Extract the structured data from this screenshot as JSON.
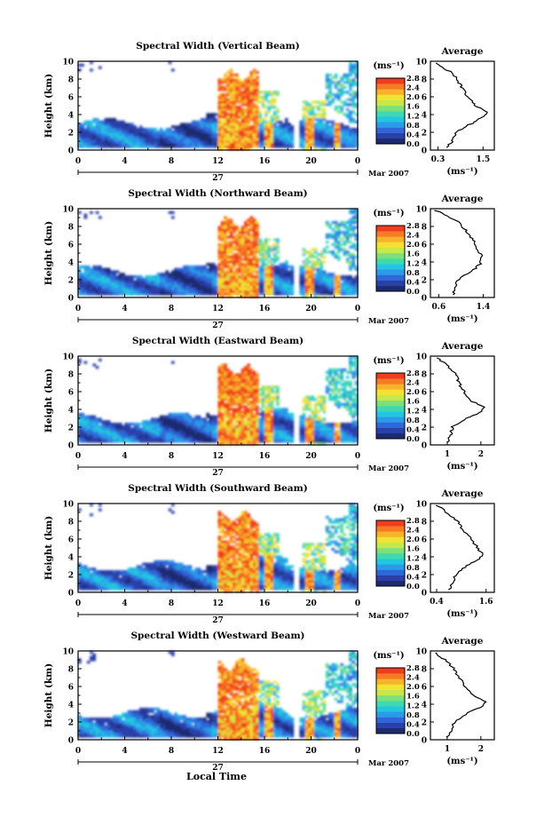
{
  "figure": {
    "xlabel": "Local Time",
    "date_label": "Mar 2007",
    "day_label": "27"
  },
  "colorbar": {
    "unit": "(ms⁻¹)",
    "ticks": [
      "2.8",
      "2.4",
      "2.0",
      "1.6",
      "1.2",
      "0.8",
      "0.4",
      "0.0"
    ],
    "vmin": 0.0,
    "vmax": 2.8,
    "colors": [
      "#1c2a6e",
      "#2a3fa8",
      "#2f67d8",
      "#2b9ae8",
      "#22c6e0",
      "#3fd9b0",
      "#7fe07a",
      "#c6e84a",
      "#f2e233",
      "#f9b32a",
      "#f67b25",
      "#f03d1f"
    ]
  },
  "chart_data": [
    {
      "type": "heatmap",
      "title": "Spectral Width (Vertical Beam)",
      "ylabel": "Height (km)",
      "xticks": [
        "0",
        "4",
        "8",
        "12",
        "16",
        "20",
        "0"
      ],
      "yticks": [
        "0",
        "2",
        "4",
        "6",
        "8",
        "10"
      ],
      "xlim": [
        0,
        24
      ],
      "ylim": [
        0,
        10
      ],
      "gaps": [
        [
          18.5,
          19.0
        ]
      ],
      "profile": {
        "title": "Average",
        "xlabel": "(ms⁻¹)",
        "xticks": [
          "0.3",
          "1.5"
        ],
        "xtick_values": [
          0.3,
          1.5
        ],
        "xlim": [
          0.1,
          1.8
        ],
        "yticks": [
          "0",
          "2",
          "4",
          "6",
          "8",
          "10"
        ],
        "heights": [
          0.3,
          1.0,
          2.0,
          3.0,
          3.8,
          4.3,
          5.0,
          6.0,
          7.0,
          8.0,
          8.8,
          9.4,
          9.8
        ],
        "values": [
          0.5,
          0.7,
          0.75,
          1.2,
          1.5,
          1.6,
          1.3,
          1.1,
          0.95,
          0.8,
          0.65,
          0.35,
          0.25
        ]
      }
    },
    {
      "type": "heatmap",
      "title": "Spectral Width (Northward Beam)",
      "ylabel": "Height (km)",
      "xticks": [
        "0",
        "4",
        "8",
        "12",
        "16",
        "20",
        "0"
      ],
      "yticks": [
        "0",
        "2",
        "4",
        "6",
        "8",
        "10"
      ],
      "xlim": [
        0,
        24
      ],
      "ylim": [
        0,
        10
      ],
      "gaps": [
        [
          18.5,
          19.0
        ]
      ],
      "profile": {
        "title": "Average",
        "xlabel": "(ms⁻¹)",
        "xticks": [
          "0.6",
          "1.4"
        ],
        "xtick_values": [
          0.6,
          1.4
        ],
        "xlim": [
          0.45,
          1.6
        ],
        "yticks": [
          "0",
          "2",
          "4",
          "6",
          "8",
          "10"
        ],
        "heights": [
          0.3,
          1.0,
          2.0,
          3.0,
          3.8,
          4.5,
          5.5,
          6.5,
          7.5,
          8.5,
          9.3,
          9.8
        ],
        "values": [
          0.85,
          0.9,
          0.95,
          1.2,
          1.35,
          1.38,
          1.3,
          1.22,
          1.1,
          0.95,
          0.7,
          0.55
        ]
      }
    },
    {
      "type": "heatmap",
      "title": "Spectral Width (Eastward Beam)",
      "ylabel": "Height (km)",
      "xticks": [
        "0",
        "4",
        "8",
        "12",
        "16",
        "20",
        "0"
      ],
      "yticks": [
        "0",
        "2",
        "4",
        "6",
        "8",
        "10"
      ],
      "xlim": [
        0,
        24
      ],
      "ylim": [
        0,
        10
      ],
      "gaps": [
        [
          18.5,
          19.0
        ]
      ],
      "profile": {
        "title": "Average",
        "xlabel": "(ms⁻¹)",
        "xticks": [
          "1",
          "2"
        ],
        "xtick_values": [
          1,
          2
        ],
        "xlim": [
          0.5,
          2.4
        ],
        "yticks": [
          "0",
          "2",
          "4",
          "6",
          "8",
          "10"
        ],
        "heights": [
          0.3,
          1.0,
          2.0,
          3.0,
          3.8,
          4.2,
          5.0,
          6.0,
          7.0,
          8.0,
          8.8,
          9.5,
          9.8
        ],
        "values": [
          1.0,
          1.1,
          1.15,
          1.6,
          2.05,
          2.1,
          1.7,
          1.5,
          1.35,
          1.25,
          1.05,
          0.8,
          0.7
        ]
      }
    },
    {
      "type": "heatmap",
      "title": "Spectral Width (Southward Beam)",
      "ylabel": "Height (km)",
      "xticks": [
        "0",
        "4",
        "8",
        "12",
        "16",
        "20",
        "0"
      ],
      "yticks": [
        "0",
        "2",
        "4",
        "6",
        "8",
        "10"
      ],
      "xlim": [
        0,
        24
      ],
      "ylim": [
        0,
        10
      ],
      "gaps": [
        [
          18.5,
          19.0
        ]
      ],
      "profile": {
        "title": "Average",
        "xlabel": "(ms⁻¹)",
        "xticks": [
          "0.4",
          "1.6"
        ],
        "xtick_values": [
          0.4,
          1.6
        ],
        "xlim": [
          0.25,
          1.8
        ],
        "yticks": [
          "0",
          "2",
          "4",
          "6",
          "8",
          "10"
        ],
        "heights": [
          0.3,
          1.0,
          2.0,
          3.0,
          3.8,
          4.3,
          5.0,
          6.0,
          7.0,
          8.0,
          8.8,
          9.5,
          9.8
        ],
        "values": [
          0.7,
          0.8,
          0.85,
          1.15,
          1.45,
          1.5,
          1.4,
          1.25,
          1.05,
          0.9,
          0.7,
          0.5,
          0.4
        ]
      }
    },
    {
      "type": "heatmap",
      "title": "Spectral Width (Westward Beam)",
      "ylabel": "Height (km)",
      "xticks": [
        "0",
        "4",
        "8",
        "12",
        "16",
        "20",
        "0"
      ],
      "yticks": [
        "0",
        "2",
        "4",
        "6",
        "8",
        "10"
      ],
      "xlim": [
        0,
        24
      ],
      "ylim": [
        0,
        10
      ],
      "gaps": [
        [
          18.5,
          19.0
        ]
      ],
      "profile": {
        "title": "Average",
        "xlabel": "(ms⁻¹)",
        "xticks": [
          "1",
          "2"
        ],
        "xtick_values": [
          1,
          2
        ],
        "xlim": [
          0.5,
          2.4
        ],
        "yticks": [
          "0",
          "2",
          "4",
          "6",
          "8",
          "10"
        ],
        "heights": [
          0.3,
          1.0,
          2.0,
          3.0,
          3.8,
          4.2,
          5.0,
          6.0,
          7.0,
          8.0,
          8.8,
          9.5,
          9.8
        ],
        "values": [
          1.0,
          1.1,
          1.2,
          1.6,
          2.1,
          2.15,
          1.75,
          1.55,
          1.35,
          1.2,
          1.0,
          0.75,
          0.65
        ]
      }
    }
  ]
}
